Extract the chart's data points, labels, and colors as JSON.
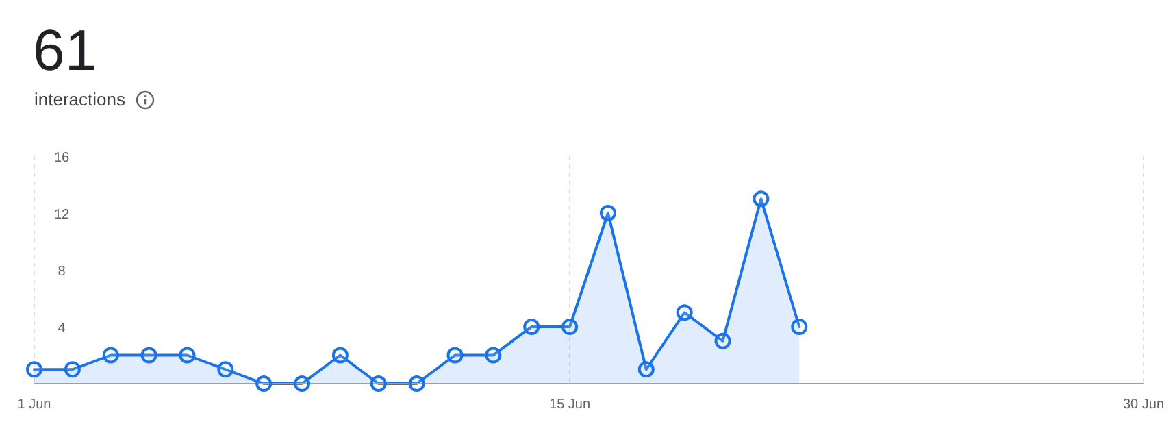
{
  "chart_data": {
    "type": "area",
    "title": "61",
    "subtitle": "interactions",
    "x": [
      "--06-01",
      "--06-02",
      "--06-03",
      "--06-04",
      "--06-05",
      "--06-06",
      "--06-07",
      "--06-08",
      "--06-09",
      "--06-10",
      "--06-11",
      "--06-12",
      "--06-13",
      "--06-14",
      "--06-15",
      "--06-16",
      "--06-17",
      "--06-18",
      "--06-19",
      "--06-20",
      "--06-21"
    ],
    "values": [
      1,
      1,
      2,
      2,
      2,
      1,
      0,
      0,
      2,
      0,
      0,
      2,
      2,
      4,
      4,
      12,
      1,
      5,
      3,
      13,
      4
    ],
    "color": "#1a73e8",
    "xlim": [
      "--06-01",
      "--06-30"
    ],
    "xticks": [
      {
        "value": "--06-01",
        "label": "1 Jun"
      },
      {
        "value": "--06-15",
        "label": "15 Jun"
      },
      {
        "value": "--06-30",
        "label": "30 Jun"
      }
    ],
    "ylim": [
      0,
      16
    ],
    "yticks": [
      4,
      8,
      12,
      16
    ],
    "grid": "x",
    "marker": "circle"
  }
}
